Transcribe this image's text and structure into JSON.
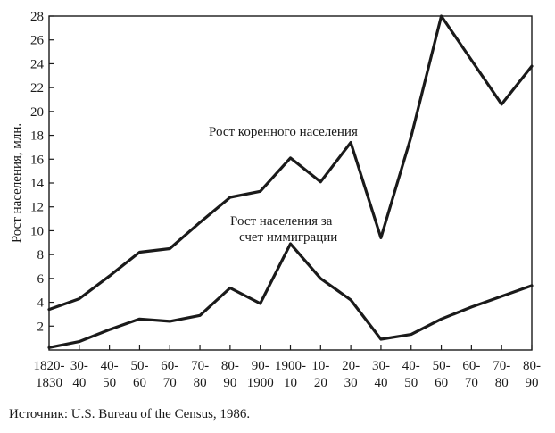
{
  "chart_data": {
    "type": "line",
    "ylabel": "Рост населения, млн.",
    "ylim": [
      0,
      28
    ],
    "yticks": [
      2,
      4,
      6,
      8,
      10,
      12,
      14,
      16,
      18,
      20,
      22,
      24,
      26,
      28
    ],
    "categories": [
      [
        "1820-",
        "1830"
      ],
      [
        "30-",
        "40"
      ],
      [
        "40-",
        "50"
      ],
      [
        "50-",
        "60"
      ],
      [
        "60-",
        "70"
      ],
      [
        "70-",
        "80"
      ],
      [
        "80-",
        "90"
      ],
      [
        "90-",
        "1900"
      ],
      [
        "1900-",
        "10"
      ],
      [
        "10-",
        "20"
      ],
      [
        "20-",
        "30"
      ],
      [
        "30-",
        "40"
      ],
      [
        "40-",
        "50"
      ],
      [
        "50-",
        "60"
      ],
      [
        "60-",
        "70"
      ],
      [
        "70-",
        "80"
      ],
      [
        "80-",
        "90"
      ]
    ],
    "series": [
      {
        "name": "Рост коренного населения",
        "values": [
          3.4,
          4.3,
          6.2,
          8.2,
          8.5,
          10.7,
          12.8,
          13.3,
          16.1,
          14.1,
          17.4,
          9.4,
          17.9,
          28.0,
          24.3,
          20.6,
          23.8
        ]
      },
      {
        "name": "Рост населения за счет иммиграции",
        "values": [
          0.2,
          0.7,
          1.7,
          2.6,
          2.4,
          2.9,
          5.2,
          3.9,
          8.9,
          6.0,
          4.2,
          0.9,
          1.3,
          2.6,
          3.6,
          4.5,
          5.4
        ]
      }
    ],
    "annotations": {
      "native": "Рост коренного населения",
      "immigration_line1": "Рост населения за",
      "immigration_line2": "счет иммиграции"
    },
    "grid": false,
    "legend": "none"
  },
  "source_note": "Источник: U.S. Bureau of the Census, 1986."
}
